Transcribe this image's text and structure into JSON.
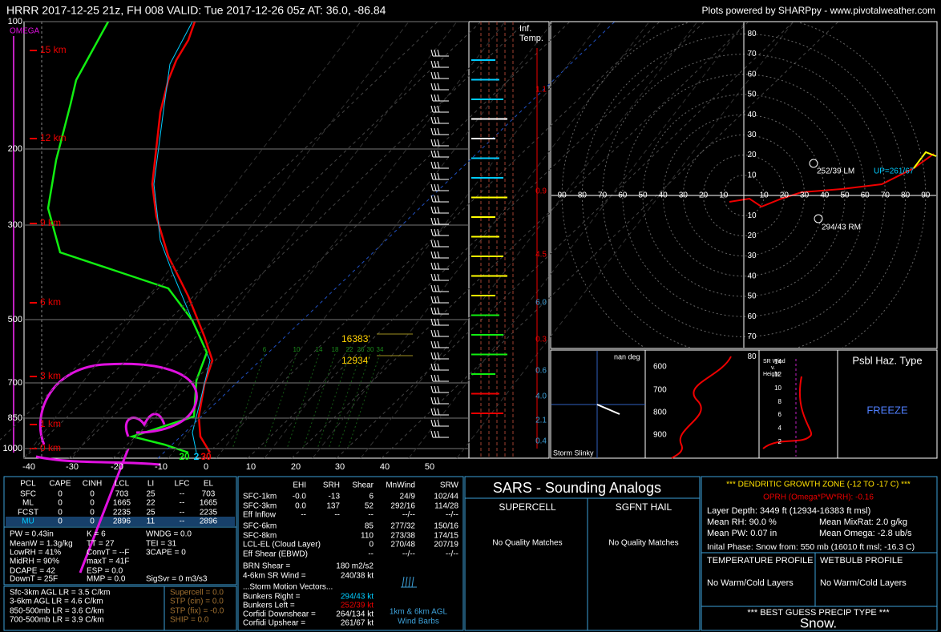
{
  "header": {
    "title": "HRRR 2017-12-25 21z, FH 008   VALID: Tue 2017-12-26 05z   AT: 36.0, -86.84",
    "credit": "Plots powered by SHARPpy - www.pivotalweather.com"
  },
  "skewt": {
    "omega_label": "OMEGA",
    "pressure_labels": [
      "100",
      "200",
      "300",
      "500",
      "700",
      "850",
      "1000"
    ],
    "height_labels": [
      "15 km",
      "12 km",
      "9 km",
      "6 km",
      "3 km",
      "1 km",
      "0 km"
    ],
    "temp_labels": [
      "-40",
      "-30",
      "-20",
      "-10",
      "0",
      "10",
      "20",
      "30",
      "40",
      "50"
    ],
    "sfc_labels": [
      "20",
      "2",
      "30"
    ],
    "dgz_labels": [
      "16383'",
      "12934'"
    ],
    "mixing_ratio_labels": [
      "6",
      "10",
      "14",
      "18",
      "22",
      "26",
      "30",
      "34"
    ]
  },
  "inflow": {
    "title": [
      "Inf.",
      "Temp."
    ],
    "labels": [
      "1.1",
      "0.9",
      "4.5",
      "6.0",
      "0.3",
      "0.6",
      "4.0",
      "2.1",
      "0.4"
    ]
  },
  "hodograph": {
    "ring_labels": [
      "10",
      "20",
      "30",
      "40",
      "50",
      "60",
      "70",
      "80",
      "90"
    ],
    "annotations": [
      "252/39 LM",
      "294/43 RM",
      "UP=261/67"
    ]
  },
  "storm_slinky": {
    "angle": "nan deg",
    "title": "Storm Slinky",
    "pressure_labels": [
      "600",
      "700",
      "800",
      "900"
    ]
  },
  "sr_wind": {
    "title": [
      "SR Wind",
      "v.",
      "Height"
    ],
    "ticks": [
      "14",
      "12",
      "10",
      "8",
      "6",
      "4",
      "2"
    ]
  },
  "hazard": {
    "title": "Psbl Haz. Type",
    "value": "FREEZE"
  },
  "parcels": {
    "header": [
      "PCL",
      "CAPE",
      "CINH",
      "LCL",
      "LI",
      "LFC",
      "EL"
    ],
    "rows": [
      [
        "SFC",
        "0",
        "0",
        "703",
        "25",
        "--",
        "703"
      ],
      [
        "ML",
        "0",
        "0",
        "1665",
        "22",
        "--",
        "1665"
      ],
      [
        "FCST",
        "0",
        "0",
        "2235",
        "25",
        "--",
        "2235"
      ],
      [
        "MU",
        "0",
        "0",
        "2896",
        "11",
        "--",
        "2896"
      ]
    ]
  },
  "indices": {
    "left": [
      "PW = 0.43in",
      "MeanW = 1.3g/kg",
      "LowRH = 41%",
      "MidRH = 90%",
      "DCAPE = 42",
      "DownT = 25F"
    ],
    "middle": [
      "K = 6",
      "TT = 27",
      "ConvT = --F",
      "maxT = 41F",
      "ESP = 0.0",
      "MMP = 0.0"
    ],
    "right": [
      "WNDG = 0.0",
      "TEI = 31",
      "3CAPE = 0",
      "SigSvr = 0 m3/s3"
    ]
  },
  "lapse_rates": [
    "Sfc-3km AGL LR = 3.5 C/km",
    "3-6km AGL LR = 4.6 C/km",
    "850-500mb LR = 3.6 C/km",
    "700-500mb LR = 3.9 C/km"
  ],
  "stp": [
    "Supercell = 0.0",
    "STP (cin) = 0.0",
    "STP (fix) = -0.0",
    "SHIP = 0.0"
  ],
  "kinematics": {
    "header": [
      "EHI",
      "SRH",
      "Shear",
      "MnWind",
      "SRW"
    ],
    "rows": [
      {
        "label": "SFC-1km",
        "cells": [
          "-0.0",
          "-13",
          "6",
          "24/9",
          "102/44"
        ]
      },
      {
        "label": "SFC-3km",
        "cells": [
          "0.0",
          "137",
          "52",
          "292/16",
          "114/28"
        ]
      },
      {
        "label": "Eff Inflow",
        "cells": [
          "--",
          "--",
          "--",
          "--/--",
          "--/--"
        ]
      },
      {
        "label": "SFC-6km",
        "cells": [
          "85",
          "277/32",
          "150/16"
        ]
      },
      {
        "label": "SFC-8km",
        "cells": [
          "110",
          "273/38",
          "174/15"
        ]
      },
      {
        "label": "LCL-EL (Cloud Layer)",
        "cells": [
          "0",
          "270/48",
          "207/19"
        ]
      },
      {
        "label": "Eff Shear (EBWD)",
        "cells": [
          "--",
          "--/--",
          "--/--"
        ]
      }
    ],
    "params": [
      [
        "BRN Shear =",
        "180 m2/s2"
      ],
      [
        "4-6km SR Wind =",
        "240/38 kt"
      ]
    ],
    "motion_title": "...Storm Motion Vectors...",
    "motion": [
      [
        "Bunkers Right =",
        "294/43 kt"
      ],
      [
        "Bunkers Left =",
        "252/39 kt"
      ],
      [
        "Corfidi Downshear =",
        "264/134 kt"
      ],
      [
        "Corfidi Upshear =",
        "261/67 kt"
      ]
    ],
    "barb_legend": [
      "1km & 6km AGL",
      "Wind Barbs"
    ]
  },
  "sars": {
    "title": "SARS - Sounding Analogs",
    "supercell": "SUPERCELL",
    "hail": "SGFNT HAIL",
    "supercell_result": "No Quality Matches",
    "hail_result": "No Quality Matches"
  },
  "dgz": {
    "title": "*** DENDRITIC GROWTH ZONE (-12 TO -17 C) ***",
    "oprh": "OPRH (Omega*PW*RH): -0.16",
    "depth": "Layer Depth: 3449 ft (12934-16383 ft msl)",
    "left": [
      "Mean RH: 90.0 %",
      "Mean PW: 0.07 in"
    ],
    "right": [
      "Mean MixRat: 2.0 g/kg",
      "Mean Omega: -2.8 ub/s"
    ],
    "phase": "Inital Phase: Snow from: 550 mb (16010 ft msl; -16.3 C)",
    "temp_profile": "TEMPERATURE PROFILE",
    "temp_result": "No Warm/Cold Layers",
    "wetbulb_profile": "WETBULB PROFILE",
    "wetbulb_result": "No Warm/Cold Layers",
    "precip_title": "*** BEST GUESS PRECIP TYPE ***",
    "precip": "Snow."
  }
}
